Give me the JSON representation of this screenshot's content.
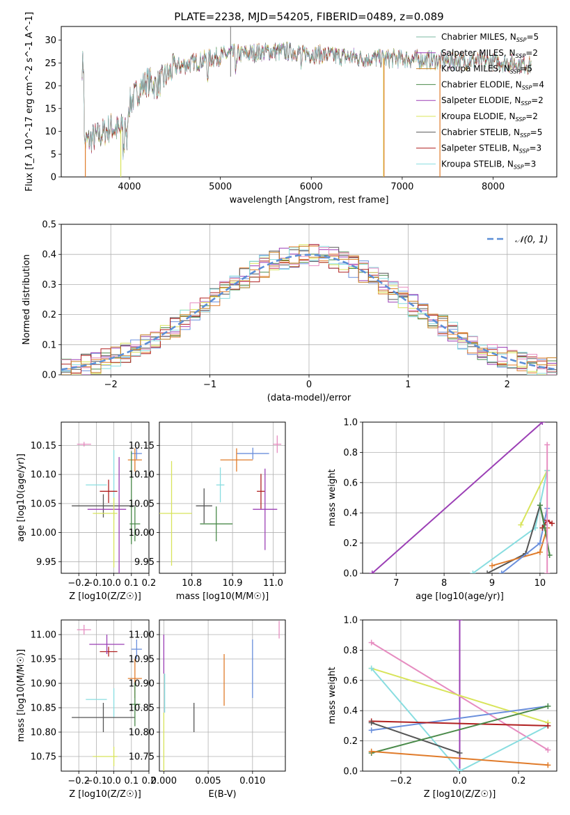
{
  "title": "PLATE=2238, MJD=54205, FIBERID=0489, z=0.089",
  "colors": {
    "c1": "#6a8fdc",
    "c2": "#e07b2a",
    "c3": "#b9811d",
    "c4": "#5a8f5a",
    "c5": "#9b3fb5",
    "c6": "#d8e45a",
    "c7": "#555555",
    "c8": "#b02020",
    "c9": "#88dde0",
    "c10": "#e68cc0",
    "c11": "#2e8b57"
  },
  "chart_data": [
    {
      "id": "spectrum",
      "type": "line",
      "xlabel": "wavelength [Angstrom, rest frame]",
      "ylabel": "Flux [f_λ 10^-17 erg cm^-2 s^-1 A^-1]",
      "xlim": [
        3250,
        8700
      ],
      "ylim": [
        0,
        33
      ],
      "xticks": [
        4000,
        5000,
        6000,
        7000,
        8000
      ],
      "yticks": [
        0,
        5,
        10,
        15,
        20,
        25,
        30
      ],
      "legend_position": "upper right",
      "series": [
        {
          "name": "Chabrier MILES, N_SSP=5",
          "color": "#7ab8a0"
        },
        {
          "name": "Salpeter MILES, N_SSP=2",
          "color": "#9b3fb5"
        },
        {
          "name": "Kroupa MILES, N_SSP=5",
          "color": "#c77f20"
        },
        {
          "name": "Chabrier ELODIE, N_SSP=4",
          "color": "#4a8a4a"
        },
        {
          "name": "Salpeter ELODIE, N_SSP=2",
          "color": "#9b3fb5"
        },
        {
          "name": "Kroupa ELODIE, N_SSP=2",
          "color": "#d8e45a"
        },
        {
          "name": "Chabrier STELIB, N_SSP=5",
          "color": "#555555"
        },
        {
          "name": "Salpeter STELIB, N_SSP=3",
          "color": "#b02020"
        },
        {
          "name": "Kroupa STELIB, N_SSP=3",
          "color": "#88dde0"
        }
      ],
      "continuum": {
        "x": [
          3500,
          3600,
          3700,
          3800,
          3900,
          4000,
          4100,
          4200,
          4300,
          4400,
          4500,
          4700,
          4900,
          5100,
          5300,
          5500,
          5800,
          6000,
          6300,
          6600,
          7000,
          7400,
          7800,
          8200,
          8400
        ],
        "y": [
          7.5,
          8.5,
          9.5,
          11,
          10,
          16,
          19,
          21,
          20,
          22,
          24,
          25,
          26,
          27,
          27,
          27.5,
          27.5,
          27,
          26.5,
          26,
          26,
          25.5,
          25.5,
          25,
          24.5
        ]
      }
    },
    {
      "id": "residuals",
      "type": "line",
      "xlabel": "(data-model)/error",
      "ylabel": "Normed distribution",
      "xlim": [
        -2.5,
        2.5
      ],
      "ylim": [
        0,
        0.5
      ],
      "xticks": [
        -2,
        -1,
        0,
        1,
        2
      ],
      "yticks": [
        0.0,
        0.1,
        0.2,
        0.3,
        0.4,
        0.5
      ],
      "legend_label": "𝒩(0, 1)",
      "legend_position": "upper right",
      "gaussian": {
        "mean": 0,
        "sigma": 1
      }
    },
    {
      "id": "age_vs_Z",
      "type": "scatter",
      "xlabel": "Z [log10(Z/Z☉)]",
      "ylabel": "age [log10(age/yr)]",
      "xlim": [
        -0.3,
        0.2
      ],
      "ylim": [
        9.93,
        10.19
      ],
      "xticks": [
        -0.2,
        -0.1,
        0.0,
        0.1,
        0.2
      ],
      "yticks": [
        9.95,
        10.0,
        10.05,
        10.1,
        10.15
      ],
      "points": [
        {
          "x": -0.17,
          "xerr": 0.04,
          "y": 10.152,
          "yerr": 0.004,
          "color": "#e68cc0"
        },
        {
          "x": 0.13,
          "xerr": 0.03,
          "y": 10.136,
          "yerr": 0.01,
          "color": "#6a8fdc"
        },
        {
          "x": 0.12,
          "xerr": 0.04,
          "y": 10.125,
          "yerr": 0.02,
          "color": "#e07b2a"
        },
        {
          "x": -0.1,
          "xerr": 0.06,
          "y": 10.082,
          "yerr": 0.0,
          "color": "#88dde0"
        },
        {
          "x": 0.0,
          "xerr": 0.0,
          "y": 10.082,
          "yerr": 0.06,
          "color": "#88dde0"
        },
        {
          "x": -0.03,
          "xerr": 0.05,
          "y": 10.071,
          "yerr": 0.02,
          "color": "#b02020"
        },
        {
          "x": -0.06,
          "xerr": 0.18,
          "y": 10.046,
          "yerr": 0.02,
          "color": "#555555"
        },
        {
          "x": -0.04,
          "xerr": 0.11,
          "y": 10.04,
          "yerr": 0.0,
          "color": "#9b3fb5"
        },
        {
          "x": -0.05,
          "xerr": 0.07,
          "y": 10.033,
          "yerr": 0.0,
          "color": "#d8e45a"
        },
        {
          "x": 0.0,
          "xerr": 0.0,
          "y": 10.0,
          "yerr": 0.06,
          "color": "#d8e45a"
        },
        {
          "x": 0.03,
          "xerr": 0.0,
          "y": 10.03,
          "yerr": 0.1,
          "color": "#9b3fb5"
        },
        {
          "x": 0.12,
          "xerr": 0.03,
          "y": 10.015,
          "yerr": 0.03,
          "color": "#4a8a4a"
        },
        {
          "x": 0.1,
          "xerr": 0.0,
          "y": 10.06,
          "yerr": 0.08,
          "color": "#4a8a4a"
        }
      ]
    },
    {
      "id": "age_vs_mass",
      "type": "scatter",
      "xlabel": "mass [log10(M/M☉)]",
      "ylabel": "",
      "xlim": [
        10.72,
        11.03
      ],
      "ylim": [
        9.93,
        10.19
      ],
      "xticks": [
        10.8,
        10.9,
        11.0
      ],
      "yticks": [
        9.95,
        10.0,
        10.05,
        10.1,
        10.15
      ],
      "points": [
        {
          "x": 11.01,
          "xerr": 0.01,
          "y": 10.152,
          "yerr": 0.015,
          "color": "#e68cc0"
        },
        {
          "x": 10.95,
          "xerr": 0.04,
          "y": 10.136,
          "yerr": 0.01,
          "color": "#6a8fdc"
        },
        {
          "x": 10.91,
          "xerr": 0.04,
          "y": 10.125,
          "yerr": 0.02,
          "color": "#e07b2a"
        },
        {
          "x": 10.87,
          "xerr": 0.01,
          "y": 10.082,
          "yerr": 0.03,
          "color": "#88dde0"
        },
        {
          "x": 10.97,
          "xerr": 0.01,
          "y": 10.071,
          "yerr": 0.03,
          "color": "#b02020"
        },
        {
          "x": 10.83,
          "xerr": 0.02,
          "y": 10.046,
          "yerr": 0.03,
          "color": "#555555"
        },
        {
          "x": 10.98,
          "xerr": 0.03,
          "y": 10.04,
          "yerr": 0.07,
          "color": "#9b3fb5"
        },
        {
          "x": 10.75,
          "xerr": 0.05,
          "y": 10.033,
          "yerr": 0.09,
          "color": "#d8e45a"
        },
        {
          "x": 10.86,
          "xerr": 0.04,
          "y": 10.015,
          "yerr": 0.03,
          "color": "#4a8a4a"
        }
      ]
    },
    {
      "id": "massweight_vs_age",
      "type": "line",
      "xlabel": "age [log10(age/yr)]",
      "ylabel": "mass weight",
      "xlim": [
        6.3,
        10.35
      ],
      "ylim": [
        0,
        1
      ],
      "xticks": [
        7,
        8,
        9,
        10
      ],
      "yticks": [
        0.0,
        0.2,
        0.4,
        0.6,
        0.8,
        1.0
      ],
      "series": [
        {
          "color": "#9b3fb5",
          "x": [
            6.5,
            10.05
          ],
          "y": [
            0.0,
            1.0
          ]
        },
        {
          "color": "#d8e45a",
          "x": [
            9.6,
            10.15
          ],
          "y": [
            0.32,
            0.68
          ]
        },
        {
          "color": "#88dde0",
          "x": [
            8.6,
            9.9,
            10.15
          ],
          "y": [
            0.0,
            0.3,
            0.68
          ]
        },
        {
          "color": "#555555",
          "x": [
            8.9,
            9.7,
            10.0,
            10.1
          ],
          "y": [
            0.0,
            0.13,
            0.45,
            0.32
          ]
        },
        {
          "color": "#e07b2a",
          "x": [
            9.0,
            10.0,
            10.15
          ],
          "y": [
            0.05,
            0.14,
            0.3
          ]
        },
        {
          "color": "#6a8fdc",
          "x": [
            9.2,
            10.0,
            10.15
          ],
          "y": [
            0.0,
            0.2,
            0.43
          ]
        },
        {
          "color": "#b02020",
          "x": [
            10.05,
            10.15,
            10.25
          ],
          "y": [
            0.3,
            0.35,
            0.33
          ]
        },
        {
          "color": "#4a8a4a",
          "x": [
            10.0,
            10.1,
            10.2
          ],
          "y": [
            0.45,
            0.3,
            0.12
          ]
        },
        {
          "color": "#e68cc0",
          "x": [
            10.15,
            10.15
          ],
          "y": [
            0.0,
            0.85
          ]
        }
      ]
    },
    {
      "id": "mass_vs_Z",
      "type": "scatter",
      "xlabel": "Z [log10(Z/Z☉)]",
      "ylabel": "mass [log10(M/M☉)]",
      "xlim": [
        -0.3,
        0.2
      ],
      "ylim": [
        10.72,
        11.03
      ],
      "xticks": [
        -0.2,
        -0.1,
        0.0,
        0.1,
        0.2
      ],
      "yticks": [
        10.75,
        10.8,
        10.85,
        10.9,
        10.95,
        11.0
      ],
      "points": [
        {
          "x": -0.17,
          "xerr": 0.04,
          "y": 11.01,
          "yerr": 0.01,
          "color": "#e68cc0"
        },
        {
          "x": 0.13,
          "xerr": 0.03,
          "y": 10.97,
          "yerr": 0.02,
          "color": "#6a8fdc"
        },
        {
          "x": 0.12,
          "xerr": 0.04,
          "y": 10.91,
          "yerr": 0.04,
          "color": "#e07b2a"
        },
        {
          "x": -0.1,
          "xerr": 0.06,
          "y": 10.867,
          "yerr": 0.0,
          "color": "#88dde0"
        },
        {
          "x": 0.0,
          "xerr": 0.0,
          "y": 10.86,
          "yerr": 0.03,
          "color": "#88dde0"
        },
        {
          "x": -0.03,
          "xerr": 0.05,
          "y": 10.965,
          "yerr": 0.01,
          "color": "#b02020"
        },
        {
          "x": -0.06,
          "xerr": 0.18,
          "y": 10.83,
          "yerr": 0.03,
          "color": "#555555"
        },
        {
          "x": -0.04,
          "xerr": 0.1,
          "y": 10.98,
          "yerr": 0.02,
          "color": "#9b3fb5"
        },
        {
          "x": -0.05,
          "xerr": 0.07,
          "y": 10.75,
          "yerr": 0.0,
          "color": "#d8e45a"
        },
        {
          "x": 0.0,
          "xerr": 0.0,
          "y": 10.75,
          "yerr": 0.02,
          "color": "#d8e45a"
        },
        {
          "x": 0.12,
          "xerr": 0.03,
          "y": 10.857,
          "yerr": 0.045,
          "color": "#4a8a4a"
        }
      ]
    },
    {
      "id": "mass_vs_ebv",
      "type": "scatter",
      "xlabel": "E(B-V)",
      "ylabel": "",
      "xlim": [
        -0.0005,
        0.0137
      ],
      "ylim": [
        10.72,
        11.03
      ],
      "xticks": [
        0.0,
        0.005,
        0.01
      ],
      "xticklabels": [
        "0.000",
        "0.005",
        "0.010"
      ],
      "yticks": [
        10.75,
        10.8,
        10.85,
        10.9,
        10.95,
        11.0
      ],
      "points": [
        {
          "x": 0.013,
          "xerr": 0.0,
          "y": 11.01,
          "yerr": 0.018,
          "color": "#e68cc0"
        },
        {
          "x": 0.01,
          "xerr": 0.0,
          "y": 10.93,
          "yerr": 0.06,
          "color": "#6a8fdc"
        },
        {
          "x": 0.0068,
          "xerr": 0.0,
          "y": 10.907,
          "yerr": 0.053,
          "color": "#e07b2a"
        },
        {
          "x": 0.0034,
          "xerr": 0.0,
          "y": 10.83,
          "yerr": 0.03,
          "color": "#555555"
        },
        {
          "x": 0.0,
          "xerr": 0.0,
          "y": 10.96,
          "yerr": 0.04,
          "color": "#9b3fb5"
        },
        {
          "x": 0.0,
          "xerr": 0.0,
          "y": 10.78,
          "yerr": 0.06,
          "color": "#d8e45a"
        },
        {
          "x": 0.0001,
          "xerr": 0.0,
          "y": 10.88,
          "yerr": 0.04,
          "color": "#88dde0"
        }
      ]
    },
    {
      "id": "massweight_vs_Z",
      "type": "line",
      "xlabel": "Z [log10(Z/Z☉)]",
      "ylabel": "mass weight",
      "xlim": [
        -0.33,
        0.33
      ],
      "ylim": [
        0,
        1
      ],
      "xticks": [
        -0.2,
        0.0,
        0.2
      ],
      "yticks": [
        0.0,
        0.2,
        0.4,
        0.6,
        0.8,
        1.0
      ],
      "series": [
        {
          "color": "#9b3fb5",
          "x": [
            0.0,
            0.0
          ],
          "y": [
            0.0,
            1.0
          ]
        },
        {
          "color": "#e68cc0",
          "x": [
            -0.3,
            0.3
          ],
          "y": [
            0.85,
            0.14
          ]
        },
        {
          "color": "#d8e45a",
          "x": [
            -0.3,
            0.3
          ],
          "y": [
            0.68,
            0.32
          ]
        },
        {
          "color": "#88dde0",
          "x": [
            -0.3,
            0.0,
            0.3
          ],
          "y": [
            0.68,
            0.0,
            0.3
          ]
        },
        {
          "color": "#6a8fdc",
          "x": [
            -0.3,
            0.3
          ],
          "y": [
            0.27,
            0.43
          ]
        },
        {
          "color": "#b02020",
          "x": [
            -0.3,
            0.3
          ],
          "y": [
            0.33,
            0.3
          ]
        },
        {
          "color": "#555555",
          "x": [
            -0.3,
            0.0
          ],
          "y": [
            0.32,
            0.12
          ]
        },
        {
          "color": "#4a8a4a",
          "x": [
            -0.3,
            0.3
          ],
          "y": [
            0.12,
            0.43
          ]
        },
        {
          "color": "#e07b2a",
          "x": [
            -0.3,
            0.3
          ],
          "y": [
            0.13,
            0.04
          ]
        }
      ]
    }
  ]
}
